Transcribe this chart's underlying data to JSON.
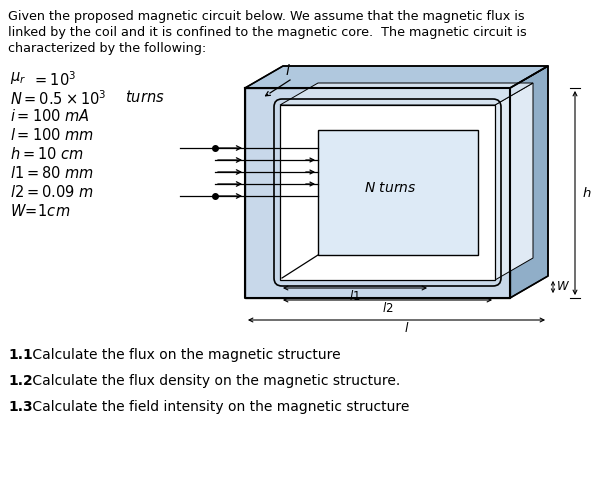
{
  "title_line1": "Given the proposed magnetic circuit below. We assume that the magnetic flux is",
  "title_line2": "linked by the coil and it is confined to the magnetic core.  The magnetic circuit is",
  "title_line3": "characterized by the following:",
  "questions": [
    "1.1 Calculate the flux on the magnetic structure",
    "1.2 Calculate the flux density on the magnetic structure.",
    "1.3 Calculate the field intensity on the magnetic structure"
  ],
  "bg_color": "#ffffff",
  "core_front_color": "#c8d8ea",
  "core_top_color": "#b0c8de",
  "core_side_color": "#90aec8",
  "core_inner_hole_color": "#ffffff",
  "core_inner_coil_color": "#d8e8f4",
  "dim_line_color": "#000000",
  "text_color": "#000000"
}
